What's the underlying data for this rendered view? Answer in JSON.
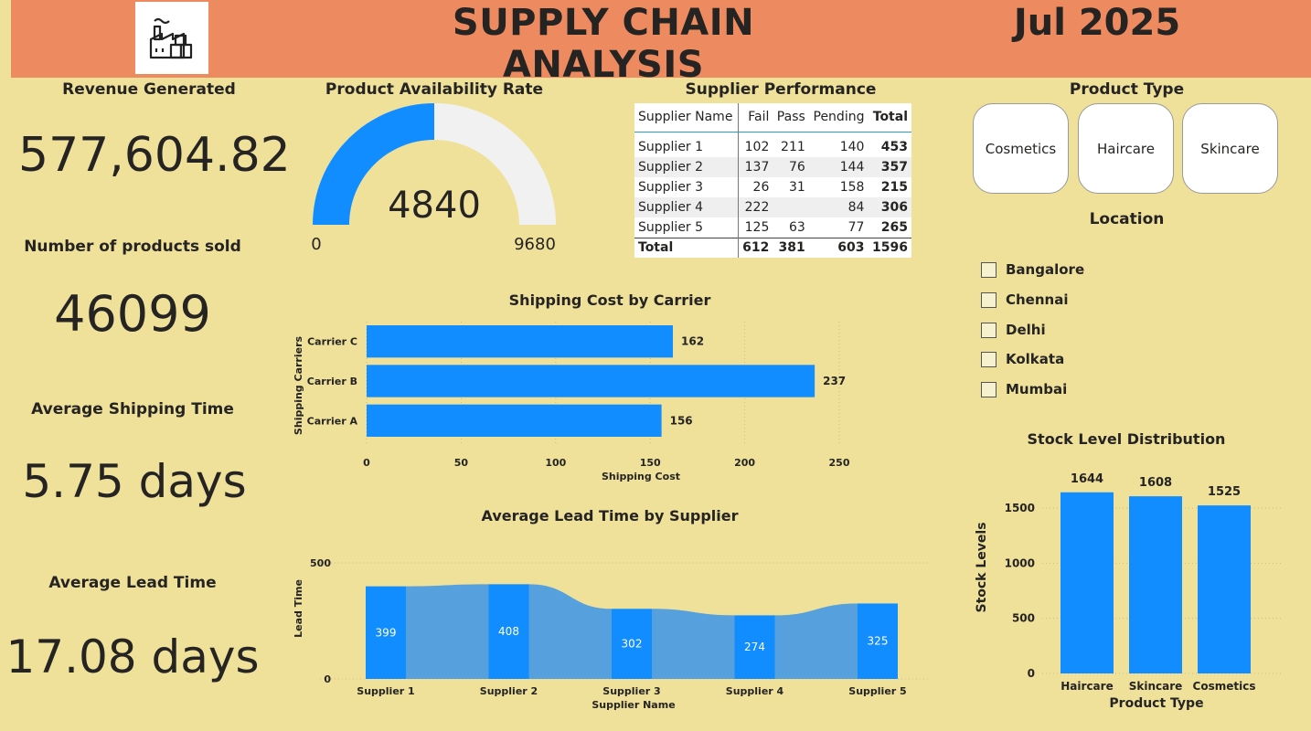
{
  "header": {
    "title": "SUPPLY CHAIN ANALYSIS",
    "date": "Jul 2025",
    "logo_icon": "factory-icon"
  },
  "kpis": [
    {
      "label": "Revenue Generated",
      "value": "577,604.82"
    },
    {
      "label": "Number of products sold",
      "value": "46099"
    },
    {
      "label": "Average Shipping Time",
      "value": "5.75 days"
    },
    {
      "label": "Average Lead Time",
      "value": "17.08 days"
    }
  ],
  "gauge": {
    "title": "Product Availability Rate",
    "value": "4840",
    "min": "0",
    "max": "9680",
    "fill_color": "#118dff",
    "track_color": "#f1f1f1"
  },
  "supplier_table": {
    "title": "Supplier Performance",
    "columns": [
      "Supplier Name",
      "Fail",
      "Pass",
      "Pending",
      "Total"
    ],
    "rows": [
      [
        "Supplier 1",
        "102",
        "211",
        "140",
        "453"
      ],
      [
        "Supplier 2",
        "137",
        "76",
        "144",
        "357"
      ],
      [
        "Supplier 3",
        "26",
        "31",
        "158",
        "215"
      ],
      [
        "Supplier 4",
        "222",
        "",
        "84",
        "306"
      ],
      [
        "Supplier 5",
        "125",
        "63",
        "77",
        "265"
      ]
    ],
    "total": [
      "Total",
      "612",
      "381",
      "603",
      "1596"
    ]
  },
  "product_type": {
    "title": "Product Type",
    "options": [
      "Cosmetics",
      "Haircare",
      "Skincare"
    ]
  },
  "location": {
    "title": "Location",
    "options": [
      "Bangalore",
      "Chennai",
      "Delhi",
      "Kolkata",
      "Mumbai"
    ]
  },
  "shipping_axis_ticks": [
    "0",
    "50",
    "100",
    "150",
    "200",
    "250"
  ],
  "lead_axis_ticks": [
    "0",
    "500"
  ],
  "stock_axis_ticks": [
    "0",
    "500",
    "1000",
    "1500"
  ],
  "chart_data": [
    {
      "type": "bar",
      "orientation": "horizontal",
      "title": "Shipping Cost by Carrier",
      "categories": [
        "Carrier C",
        "Carrier B",
        "Carrier A"
      ],
      "values": [
        162,
        237,
        156
      ],
      "xlabel": "Shipping Cost",
      "ylabel": "Shipping Carriers",
      "xlim": [
        0,
        250
      ],
      "grid": true,
      "color": "#118dff"
    },
    {
      "type": "bar",
      "title": "Average Lead Time by Supplier",
      "categories": [
        "Supplier 1",
        "Supplier 2",
        "Supplier 3",
        "Supplier 4",
        "Supplier 5"
      ],
      "values": [
        399,
        408,
        302,
        274,
        325
      ],
      "xlabel": "Supplier Name",
      "ylabel": "Lead Time",
      "ylim": [
        0,
        500
      ],
      "grid": true,
      "color": "#118dff",
      "ribbon_color": "#56a1dd"
    },
    {
      "type": "bar",
      "title": "Stock Level Distribution",
      "categories": [
        "Haircare",
        "Skincare",
        "Cosmetics"
      ],
      "values": [
        1644,
        1608,
        1525
      ],
      "xlabel": "Product Type",
      "ylabel": "Stock Levels",
      "ylim": [
        0,
        1750
      ],
      "grid": true,
      "color": "#118dff"
    }
  ]
}
